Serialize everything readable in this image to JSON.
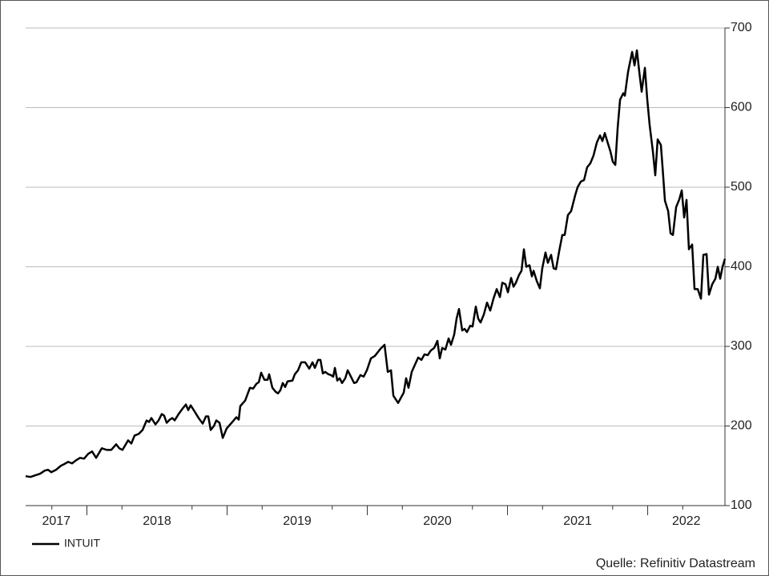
{
  "chart_data": {
    "type": "line",
    "x": [
      2017.563,
      2017.597,
      2017.631,
      2017.666,
      2017.7,
      2017.723,
      2017.746,
      2017.78,
      2017.814,
      2017.837,
      2017.866,
      2017.894,
      2017.923,
      2017.951,
      2017.98,
      2018.009,
      2018.037,
      2018.066,
      2018.106,
      2018.14,
      2018.174,
      2018.209,
      2018.231,
      2018.254,
      2018.294,
      2018.317,
      2018.34,
      2018.369,
      2018.397,
      2018.426,
      2018.443,
      2018.46,
      2018.489,
      2018.511,
      2018.534,
      2018.551,
      2018.569,
      2018.591,
      2018.609,
      2018.626,
      2018.654,
      2018.683,
      2018.706,
      2018.723,
      2018.74,
      2018.769,
      2018.797,
      2018.826,
      2018.849,
      2018.866,
      2018.883,
      2018.906,
      2018.923,
      2018.946,
      2018.969,
      2018.997,
      2019.037,
      2019.066,
      2019.083,
      2019.094,
      2019.129,
      2019.163,
      2019.186,
      2019.209,
      2019.226,
      2019.243,
      2019.266,
      2019.289,
      2019.3,
      2019.323,
      2019.346,
      2019.363,
      2019.38,
      2019.397,
      2019.414,
      2019.431,
      2019.466,
      2019.483,
      2019.506,
      2019.529,
      2019.557,
      2019.586,
      2019.609,
      2019.626,
      2019.649,
      2019.666,
      2019.683,
      2019.7,
      2019.723,
      2019.74,
      2019.757,
      2019.769,
      2019.786,
      2019.803,
      2019.82,
      2019.843,
      2019.86,
      2019.883,
      2019.906,
      2019.923,
      2019.951,
      2019.974,
      2019.997,
      2020.026,
      2020.054,
      2020.094,
      2020.123,
      2020.146,
      2020.169,
      2020.186,
      2020.22,
      2020.26,
      2020.277,
      2020.294,
      2020.317,
      2020.34,
      2020.363,
      2020.386,
      2020.408,
      2020.431,
      2020.454,
      2020.477,
      2020.5,
      2020.517,
      2020.534,
      2020.557,
      2020.58,
      2020.597,
      2020.62,
      2020.637,
      2020.654,
      2020.677,
      2020.694,
      2020.711,
      2020.734,
      2020.751,
      2020.774,
      2020.791,
      2020.808,
      2020.831,
      2020.854,
      2020.877,
      2020.9,
      2020.923,
      2020.946,
      2020.963,
      2020.986,
      2021.003,
      2021.026,
      2021.043,
      2021.06,
      2021.083,
      2021.1,
      2021.117,
      2021.134,
      2021.157,
      2021.174,
      2021.186,
      2021.209,
      2021.231,
      2021.248,
      2021.271,
      2021.288,
      2021.311,
      2021.329,
      2021.346,
      2021.369,
      2021.391,
      2021.408,
      2021.431,
      2021.454,
      2021.483,
      2021.5,
      2021.523,
      2021.546,
      2021.568,
      2021.591,
      2021.614,
      2021.637,
      2021.66,
      2021.677,
      2021.694,
      2021.711,
      2021.734,
      2021.751,
      2021.769,
      2021.786,
      2021.803,
      2021.826,
      2021.837,
      2021.86,
      2021.889,
      2021.906,
      2021.923,
      2021.94,
      2021.957,
      2021.98,
      2021.997,
      2022.014,
      2022.037,
      2022.054,
      2022.071,
      2022.094,
      2022.106,
      2022.123,
      2022.146,
      2022.163,
      2022.18,
      2022.203,
      2022.226,
      2022.243,
      2022.26,
      2022.277,
      2022.294,
      2022.317,
      2022.334,
      2022.357,
      2022.38,
      2022.397,
      2022.42,
      2022.437,
      2022.46,
      2022.483,
      2022.5,
      2022.517,
      2022.534,
      2022.551
    ],
    "series": [
      {
        "name": "INTUIT",
        "color": "#000000",
        "values": [
          137,
          136,
          138,
          140,
          144,
          145,
          142,
          145,
          150,
          152,
          155,
          153,
          157,
          160,
          159,
          165,
          168,
          160,
          172,
          170,
          170,
          177,
          172,
          170,
          182,
          178,
          188,
          190,
          195,
          207,
          205,
          210,
          202,
          207,
          215,
          213,
          204,
          208,
          210,
          207,
          215,
          222,
          227,
          220,
          226,
          218,
          210,
          203,
          212,
          212,
          195,
          200,
          207,
          204,
          185,
          197,
          205,
          211,
          208,
          225,
          232,
          248,
          247,
          253,
          255,
          267,
          258,
          258,
          265,
          248,
          243,
          241,
          245,
          254,
          249,
          256,
          257,
          265,
          270,
          280,
          280,
          272,
          280,
          273,
          283,
          283,
          266,
          268,
          265,
          264,
          262,
          273,
          257,
          260,
          254,
          260,
          270,
          262,
          254,
          255,
          264,
          262,
          270,
          285,
          288,
          297,
          302,
          268,
          270,
          238,
          229,
          242,
          260,
          248,
          268,
          277,
          286,
          283,
          290,
          289,
          295,
          298,
          307,
          285,
          298,
          296,
          310,
          302,
          315,
          335,
          347,
          320,
          322,
          318,
          326,
          325,
          350,
          335,
          330,
          340,
          355,
          345,
          360,
          372,
          362,
          380,
          378,
          368,
          386,
          375,
          380,
          390,
          395,
          422,
          400,
          402,
          388,
          395,
          382,
          373,
          398,
          418,
          405,
          415,
          398,
          397,
          420,
          440,
          440,
          465,
          470,
          490,
          500,
          507,
          509,
          525,
          530,
          540,
          556,
          565,
          558,
          568,
          558,
          545,
          532,
          528,
          575,
          610,
          618,
          615,
          645,
          670,
          653,
          672,
          645,
          620,
          650,
          610,
          578,
          545,
          515,
          560,
          553,
          525,
          483,
          470,
          442,
          440,
          475,
          485,
          496,
          462,
          484,
          422,
          428,
          372,
          372,
          360,
          415,
          416,
          365,
          378,
          385,
          400,
          385,
          400,
          410
        ]
      }
    ],
    "xlim": [
      2017.563,
      2022.551
    ],
    "xticks": [
      2017,
      2018,
      2019,
      2020,
      2021,
      2022
    ],
    "ylim": [
      100,
      700
    ],
    "yticks": [
      100,
      200,
      300,
      400,
      500,
      600,
      700
    ],
    "grid": true,
    "source": "Quelle: Refinitiv Datastream"
  }
}
